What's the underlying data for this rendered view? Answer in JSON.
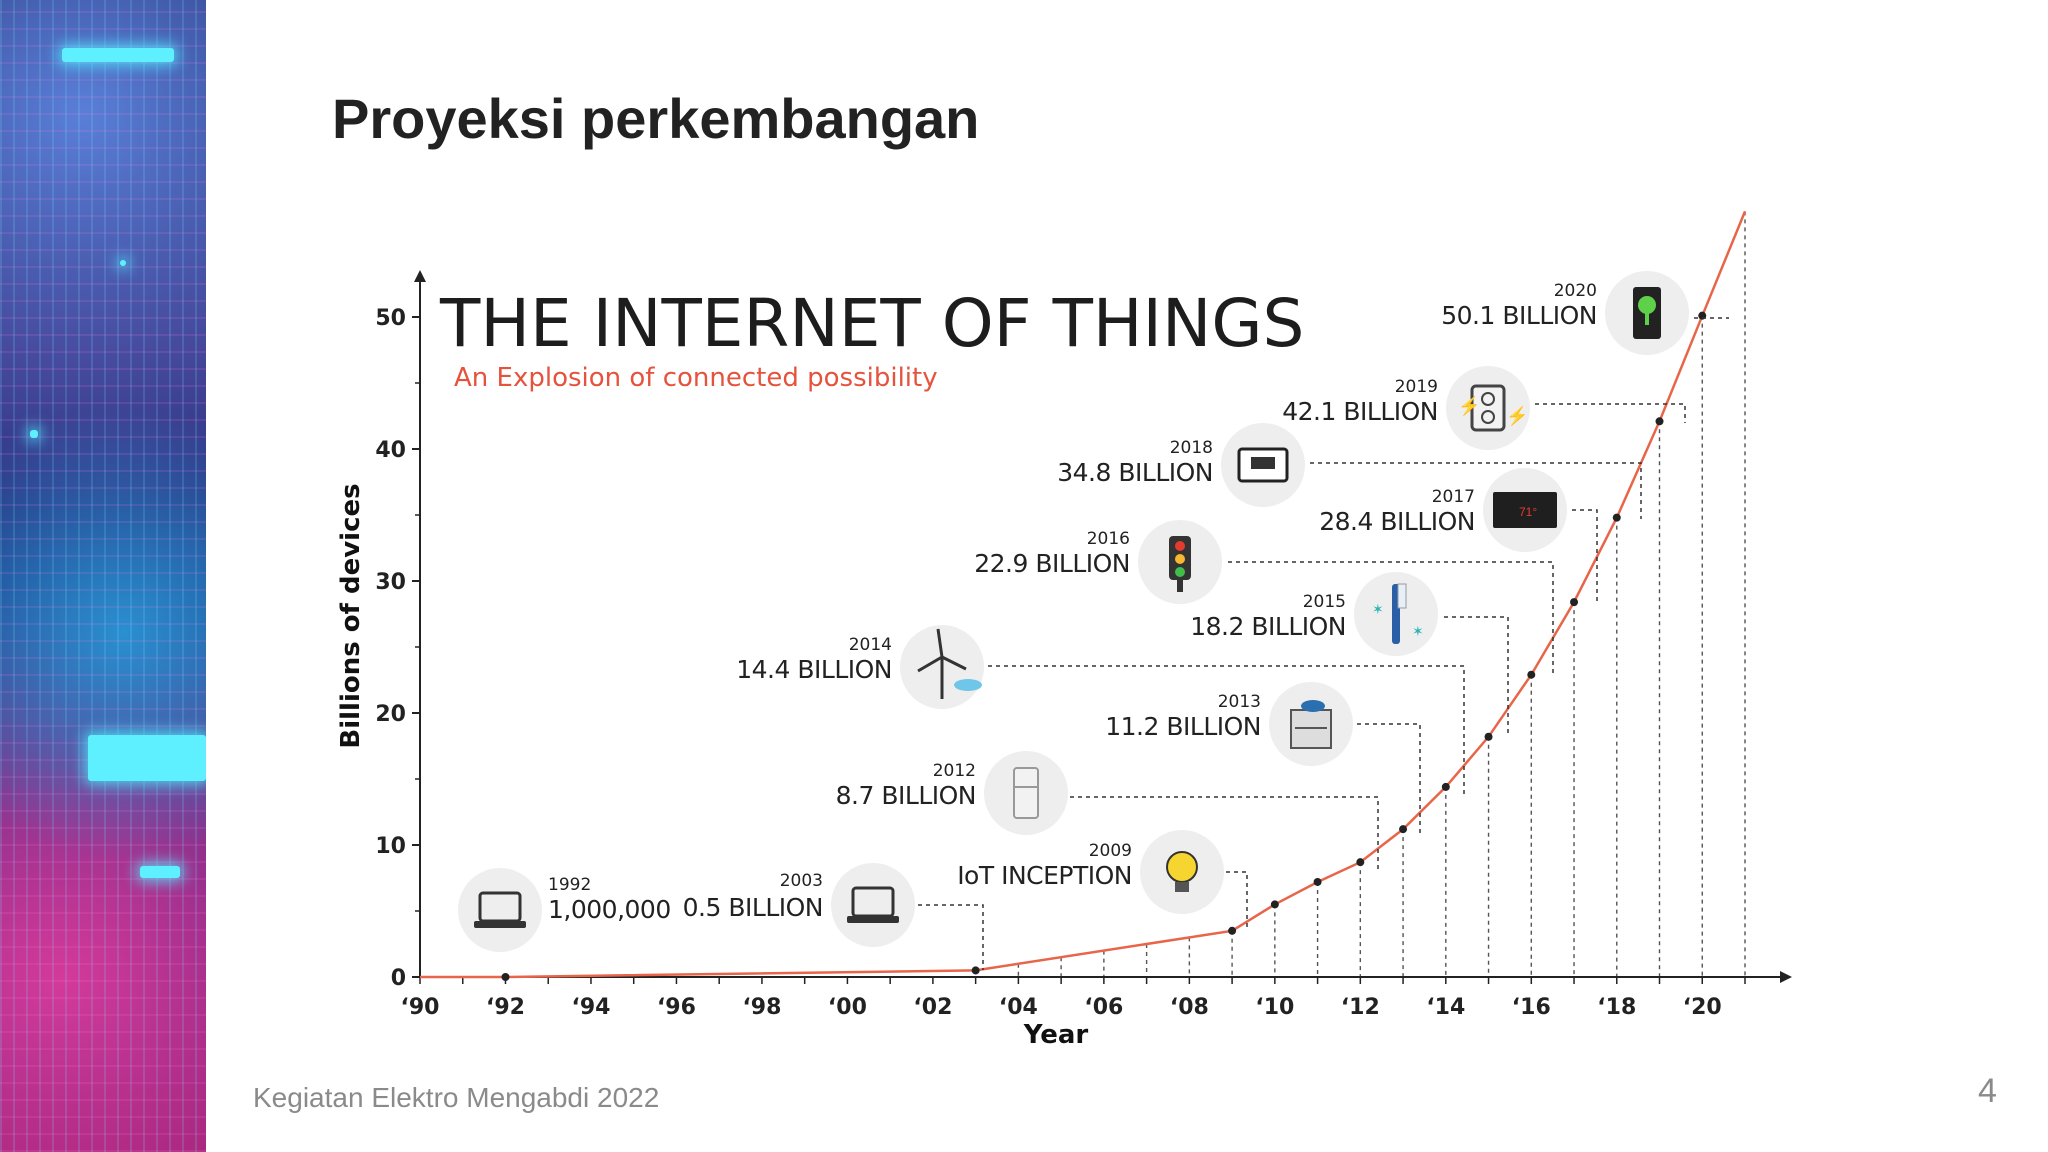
{
  "slide": {
    "title": "Proyeksi perkembangan",
    "footer": "Kegiatan Elektro Mengabdi 2022",
    "page_number": "4"
  },
  "chart_data": {
    "type": "line",
    "title": "THE INTERNET OF THINGS",
    "subtitle": "An Explosion of connected possibility",
    "xlabel": "Year",
    "ylabel": "Billions of devices",
    "xlim": [
      1990,
      2021
    ],
    "ylim": [
      0,
      50
    ],
    "x_ticks": [
      {
        "value": 1990,
        "label": "‘90"
      },
      {
        "value": 1992,
        "label": "‘92"
      },
      {
        "value": 1994,
        "label": "‘94"
      },
      {
        "value": 1996,
        "label": "‘96"
      },
      {
        "value": 1998,
        "label": "‘98"
      },
      {
        "value": 2000,
        "label": "‘00"
      },
      {
        "value": 2002,
        "label": "‘02"
      },
      {
        "value": 2004,
        "label": "‘04"
      },
      {
        "value": 2006,
        "label": "‘06"
      },
      {
        "value": 2008,
        "label": "‘08"
      },
      {
        "value": 2010,
        "label": "‘10"
      },
      {
        "value": 2012,
        "label": "‘12"
      },
      {
        "value": 2014,
        "label": "‘14"
      },
      {
        "value": 2016,
        "label": "‘16"
      },
      {
        "value": 2018,
        "label": "‘18"
      },
      {
        "value": 2020,
        "label": "‘20"
      }
    ],
    "y_ticks": [
      0,
      10,
      20,
      30,
      40,
      50
    ],
    "line_color": "#e8654a",
    "x": [
      1990,
      1992,
      2003,
      2009,
      2010,
      2011,
      2012,
      2013,
      2014,
      2015,
      2016,
      2017,
      2018,
      2019,
      2020,
      2021
    ],
    "y": [
      0,
      0.001,
      0.5,
      3.5,
      5.5,
      7.2,
      8.7,
      11.2,
      14.4,
      18.2,
      22.9,
      28.4,
      34.8,
      42.1,
      50.1,
      58
    ],
    "annotations": [
      {
        "year": "1992",
        "value": "1,000,000",
        "x": 1992,
        "icon": "laptop-icon"
      },
      {
        "year": "2003",
        "value": "0.5 BILLION",
        "x": 2003,
        "icon": "laptop-icon"
      },
      {
        "year": "2009",
        "value": "IoT INCEPTION",
        "x": 2009,
        "icon": "lightbulb-icon"
      },
      {
        "year": "2012",
        "value": "8.7 BILLION",
        "x": 2012,
        "icon": "refrigerator-icon"
      },
      {
        "year": "2013",
        "value": "11.2 BILLION",
        "x": 2013,
        "icon": "stove-icon"
      },
      {
        "year": "2014",
        "value": "14.4 BILLION",
        "x": 2014,
        "icon": "wind-turbine-icon"
      },
      {
        "year": "2015",
        "value": "18.2 BILLION",
        "x": 2015,
        "icon": "toothbrush-icon"
      },
      {
        "year": "2016",
        "value": "22.9 BILLION",
        "x": 2016,
        "icon": "traffic-light-icon"
      },
      {
        "year": "2017",
        "value": "28.4 BILLION",
        "x": 2017,
        "icon": "thermostat-icon"
      },
      {
        "year": "2018",
        "value": "34.8 BILLION",
        "x": 2018,
        "icon": "tv-icon"
      },
      {
        "year": "2019",
        "value": "42.1 BILLION",
        "x": 2019,
        "icon": "power-outlet-icon"
      },
      {
        "year": "2020",
        "value": "50.1 BILLION",
        "x": 2020,
        "icon": "smart-lock-icon"
      }
    ]
  }
}
